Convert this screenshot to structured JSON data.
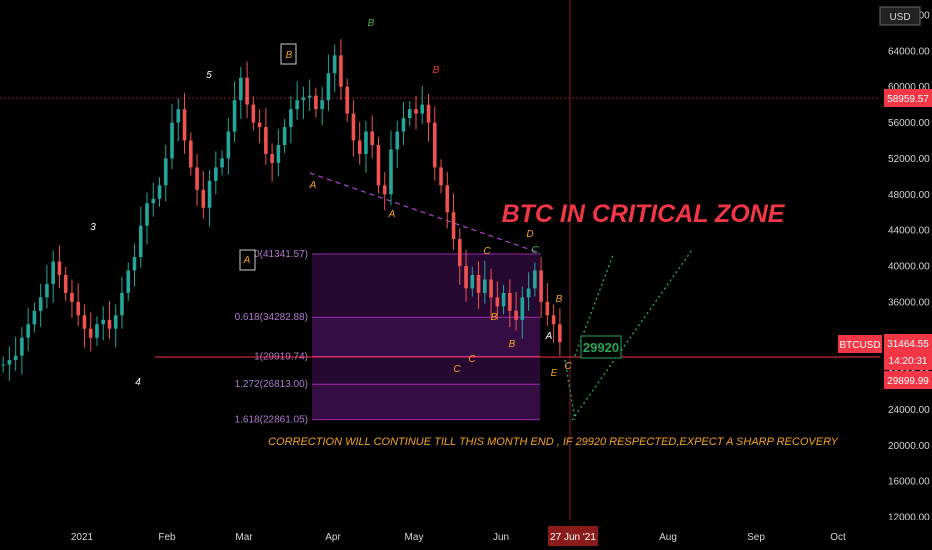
{
  "chart_data": {
    "type": "candlestick",
    "symbol": "BTCUSD",
    "currency": "USD",
    "y_axis_ticks": [
      "68000.00",
      "64000.00",
      "60000.00",
      "56000.00",
      "52000.00",
      "48000.00",
      "44000.00",
      "40000.00",
      "36000.00",
      "32000.00",
      "28000.00",
      "24000.00",
      "20000.00",
      "16000.00",
      "12000.00"
    ],
    "ylim": [
      12000,
      68000
    ],
    "x_axis_ticks": [
      "2021",
      "Feb",
      "Mar",
      "Apr",
      "May",
      "Jun",
      "Aug",
      "Sep",
      "Oct"
    ],
    "crosshair_date_label": "27 Jun '21",
    "price_labels": {
      "horizontal_line": "58959.57",
      "current_symbol": "BTCUSD",
      "current_price": "31464.55",
      "countdown": "14:20:31",
      "support_line": "29899.99"
    },
    "ohlc_series": [
      {
        "price": 29000
      },
      {
        "price": 29500
      },
      {
        "price": 30000
      },
      {
        "price": 32000
      },
      {
        "price": 33500
      },
      {
        "price": 35000
      },
      {
        "price": 36500
      },
      {
        "price": 38000
      },
      {
        "price": 40500
      },
      {
        "price": 39000
      },
      {
        "price": 37000
      },
      {
        "price": 36000
      },
      {
        "price": 34500
      },
      {
        "price": 33000
      },
      {
        "price": 32000
      },
      {
        "price": 33500
      },
      {
        "price": 34000
      },
      {
        "price": 33000
      },
      {
        "price": 34500
      },
      {
        "price": 37000
      },
      {
        "price": 39500
      },
      {
        "price": 41000
      },
      {
        "price": 44500
      },
      {
        "price": 47000
      },
      {
        "price": 47500
      },
      {
        "price": 49000
      },
      {
        "price": 52000
      },
      {
        "price": 56000
      },
      {
        "price": 57500
      },
      {
        "price": 54000
      },
      {
        "price": 51000
      },
      {
        "price": 48500
      },
      {
        "price": 46500
      },
      {
        "price": 49500
      },
      {
        "price": 51000
      },
      {
        "price": 52000
      },
      {
        "price": 55000
      },
      {
        "price": 58500
      },
      {
        "price": 61000
      },
      {
        "price": 58000
      },
      {
        "price": 56000
      },
      {
        "price": 55500
      },
      {
        "price": 52500
      },
      {
        "price": 51500
      },
      {
        "price": 53500
      },
      {
        "price": 55500
      },
      {
        "price": 57500
      },
      {
        "price": 58500
      },
      {
        "price": 58800
      },
      {
        "price": 59000
      },
      {
        "price": 57500
      },
      {
        "price": 58500
      },
      {
        "price": 61500
      },
      {
        "price": 63500
      },
      {
        "price": 60000
      },
      {
        "price": 57000
      },
      {
        "price": 54000
      },
      {
        "price": 52500
      },
      {
        "price": 55000
      },
      {
        "price": 53500
      },
      {
        "price": 49000
      },
      {
        "price": 48000
      },
      {
        "price": 53000
      },
      {
        "price": 55000
      },
      {
        "price": 56500
      },
      {
        "price": 57500
      },
      {
        "price": 57000
      },
      {
        "price": 58000
      },
      {
        "price": 56000
      },
      {
        "price": 51000
      },
      {
        "price": 49000
      },
      {
        "price": 46000
      },
      {
        "price": 43000
      },
      {
        "price": 40000
      },
      {
        "price": 37500
      },
      {
        "price": 39000
      },
      {
        "price": 37000
      },
      {
        "price": 38500
      },
      {
        "price": 36500
      },
      {
        "price": 35500
      },
      {
        "price": 37000
      },
      {
        "price": 35000
      },
      {
        "price": 34000
      },
      {
        "price": 36500
      },
      {
        "price": 37500
      },
      {
        "price": 39500
      },
      {
        "price": 36000
      },
      {
        "price": 34500
      },
      {
        "price": 33500
      },
      {
        "price": 31500
      }
    ],
    "fib_levels": [
      {
        "label": "0(41341.57)",
        "price": 41341.57
      },
      {
        "label": "0.618(34282.88)",
        "price": 34282.88
      },
      {
        "label": "1(29919.74)",
        "price": 29919.74
      },
      {
        "label": "1.272(26813.00)",
        "price": 26813.0
      },
      {
        "label": "1.618(22861.05)",
        "price": 22861.05
      }
    ],
    "wave_labels": [
      "5",
      "3",
      "4",
      "B",
      "A",
      "B",
      "B",
      "A",
      "A",
      "D",
      "C",
      "C",
      "C",
      "E",
      "C",
      "B",
      "B",
      "A",
      "C",
      "B"
    ],
    "target_box": "29920",
    "annotations": {
      "headline": "BTC IN CRITICAL ZONE",
      "note": "CORRECTION WILL CONTINUE TILL THIS MONTH END ,  IF 29920 RESPECTED,EXPECT A SHARP RECOVERY"
    },
    "colors": {
      "up": "#26a69a",
      "down": "#ef5350",
      "fib": "#9c27b0",
      "headline": "#f23645",
      "note": "#f7a31b",
      "wave_orange": "#f7a31b",
      "wave_green": "#4caf50",
      "axis_label_red": "#f23645"
    },
    "grid": false
  }
}
